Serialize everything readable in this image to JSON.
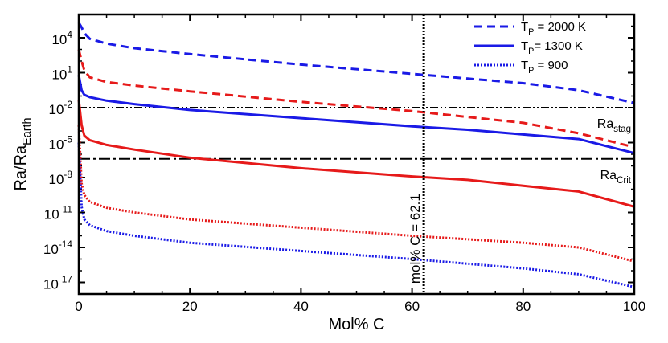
{
  "chart_data": {
    "type": "line",
    "xlabel": "Mol% C",
    "ylabel_main": "Ra/Ra",
    "ylabel_sub": "Earth",
    "xlim": [
      0,
      100
    ],
    "ylim_log10": [
      -18,
      6
    ],
    "y_scale": "log",
    "x_ticks": [
      0,
      20,
      40,
      60,
      80,
      100
    ],
    "y_ticks": [
      {
        "base": "10",
        "exp": "4",
        "value": 4
      },
      {
        "base": "10",
        "exp": "1",
        "value": 1
      },
      {
        "base": "10",
        "exp": "-2",
        "value": -2
      },
      {
        "base": "10",
        "exp": "-5",
        "value": -5
      },
      {
        "base": "10",
        "exp": "-8",
        "value": -8
      },
      {
        "base": "10",
        "exp": "-11",
        "value": -11
      },
      {
        "base": "10",
        "exp": "-14",
        "value": -14
      },
      {
        "base": "10",
        "exp": "-17",
        "value": -17
      }
    ],
    "legend": {
      "placement": "top-right",
      "entries": [
        {
          "label_main": "T",
          "label_sub": "P",
          "label_rest": " = 2000 K",
          "style": "dashed",
          "color": "#1a1ae6"
        },
        {
          "label_main": "T",
          "label_sub": "P",
          "label_rest": "= 1300 K",
          "style": "solid",
          "color": "#1a1ae6"
        },
        {
          "label_main": "T",
          "label_sub": "P",
          "label_rest": " = 900",
          "style": "dotted",
          "color": "#1a1ae6"
        }
      ]
    },
    "reference_lines": [
      {
        "label_main": "Ra",
        "label_sub": "stag",
        "log10_value": -2,
        "style": "dash-dot-dot"
      },
      {
        "label_main": "Ra",
        "label_sub": "Crit",
        "log10_value": -6.4,
        "style": "dash-dot"
      }
    ],
    "vertical_line": {
      "x": 62.1,
      "label": "mol% C = 62.1",
      "style": "dotted"
    },
    "series": [
      {
        "color": "#1a1ae6",
        "style": "dashed",
        "x": [
          0,
          0.5,
          1,
          2,
          5,
          10,
          20,
          40,
          60,
          70,
          80,
          90,
          100
        ],
        "log10_y": [
          5.3,
          4.9,
          4.4,
          3.9,
          3.5,
          3.1,
          2.6,
          1.7,
          0.9,
          0.5,
          0.1,
          -0.5,
          -1.6
        ]
      },
      {
        "color": "#e61a1a",
        "style": "dashed",
        "x": [
          0,
          0.5,
          1,
          2,
          5,
          10,
          20,
          40,
          60,
          70,
          80,
          90,
          100
        ],
        "log10_y": [
          3.0,
          2.0,
          1.2,
          0.6,
          0.2,
          -0.1,
          -0.6,
          -1.5,
          -2.3,
          -2.8,
          -3.3,
          -4.2,
          -5.4
        ]
      },
      {
        "color": "#1a1ae6",
        "style": "solid",
        "x": [
          0,
          0.5,
          1,
          2,
          5,
          10,
          20,
          40,
          60,
          70,
          80,
          90,
          100
        ],
        "log10_y": [
          0.8,
          -0.5,
          -0.9,
          -1.1,
          -1.4,
          -1.7,
          -2.2,
          -2.9,
          -3.6,
          -3.9,
          -4.3,
          -4.7,
          -5.9
        ]
      },
      {
        "color": "#e61a1a",
        "style": "solid",
        "x": [
          0,
          0.5,
          1,
          2,
          5,
          10,
          20,
          40,
          60,
          70,
          80,
          90,
          100
        ],
        "log10_y": [
          -1.3,
          -3.5,
          -4.4,
          -4.8,
          -5.2,
          -5.6,
          -6.3,
          -7.2,
          -7.9,
          -8.2,
          -8.7,
          -9.2,
          -10.5
        ]
      },
      {
        "color": "#e61a1a",
        "style": "dotted",
        "x": [
          0,
          0.5,
          1,
          2,
          5,
          10,
          20,
          40,
          60,
          70,
          80,
          90,
          100
        ],
        "log10_y": [
          -3.5,
          -8.5,
          -9.5,
          -10.1,
          -10.6,
          -11.0,
          -11.6,
          -12.3,
          -13.0,
          -13.3,
          -13.6,
          -14.0,
          -15.2
        ]
      },
      {
        "color": "#1a1ae6",
        "style": "dotted",
        "x": [
          0,
          0.5,
          1,
          2,
          5,
          10,
          20,
          40,
          60,
          70,
          80,
          90,
          100
        ],
        "log10_y": [
          -5.0,
          -10.5,
          -11.6,
          -12.1,
          -12.6,
          -13.0,
          -13.6,
          -14.3,
          -15.0,
          -15.4,
          -15.8,
          -16.3,
          -17.4
        ]
      }
    ]
  }
}
